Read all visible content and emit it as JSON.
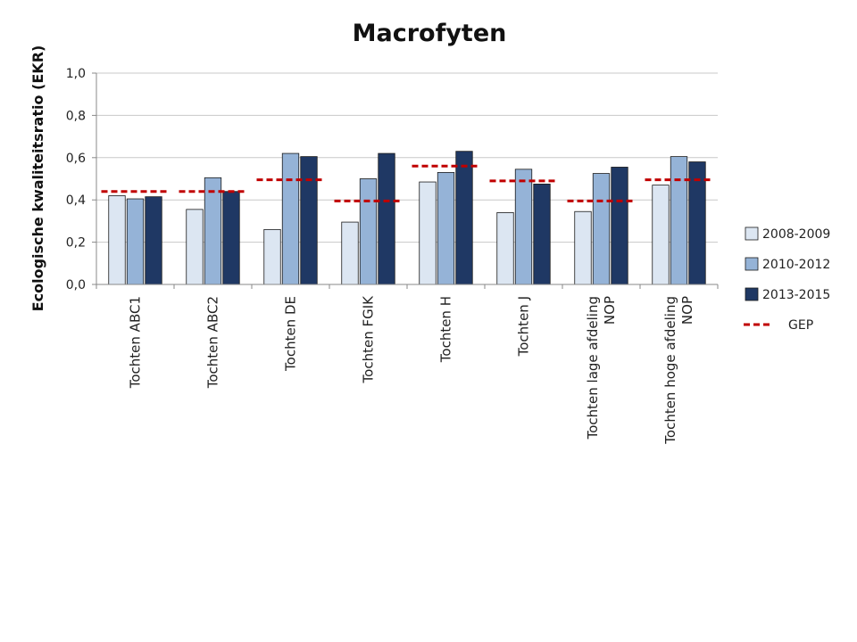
{
  "chart_data": {
    "type": "bar",
    "title": "Macrofyten",
    "ylabel": "Ecologische kwaliteitsratio (EKR)",
    "xlabel": "",
    "ylim": [
      0,
      1.0
    ],
    "yticks": [
      "0,0",
      "0,2",
      "0,4",
      "0,6",
      "0,8",
      "1,0"
    ],
    "grid": true,
    "legend_position": "right",
    "categories": [
      [
        "Tochten ABC1"
      ],
      [
        "Tochten ABC2"
      ],
      [
        "Tochten DE"
      ],
      [
        "Tochten FGIK"
      ],
      [
        "Tochten H"
      ],
      [
        "Tochten J"
      ],
      [
        "Tochten lage afdeling",
        "NOP"
      ],
      [
        "Tochten hoge afdeling",
        "NOP"
      ]
    ],
    "series": [
      {
        "name": "2008-2009",
        "color": "#dce6f2",
        "values": [
          0.42,
          0.355,
          0.26,
          0.295,
          0.485,
          0.34,
          0.345,
          0.47
        ]
      },
      {
        "name": "2010-2012",
        "color": "#95b3d7",
        "values": [
          0.405,
          0.505,
          0.62,
          0.5,
          0.53,
          0.545,
          0.525,
          0.605
        ]
      },
      {
        "name": "2013-2015",
        "color": "#1f3864",
        "values": [
          0.415,
          0.44,
          0.605,
          0.62,
          0.63,
          0.475,
          0.555,
          0.58
        ]
      }
    ],
    "reference_line": {
      "name": "GEP",
      "color": "#c00000",
      "style": "dashed",
      "values": [
        0.44,
        0.44,
        0.495,
        0.395,
        0.56,
        0.49,
        0.395,
        0.495
      ]
    }
  }
}
